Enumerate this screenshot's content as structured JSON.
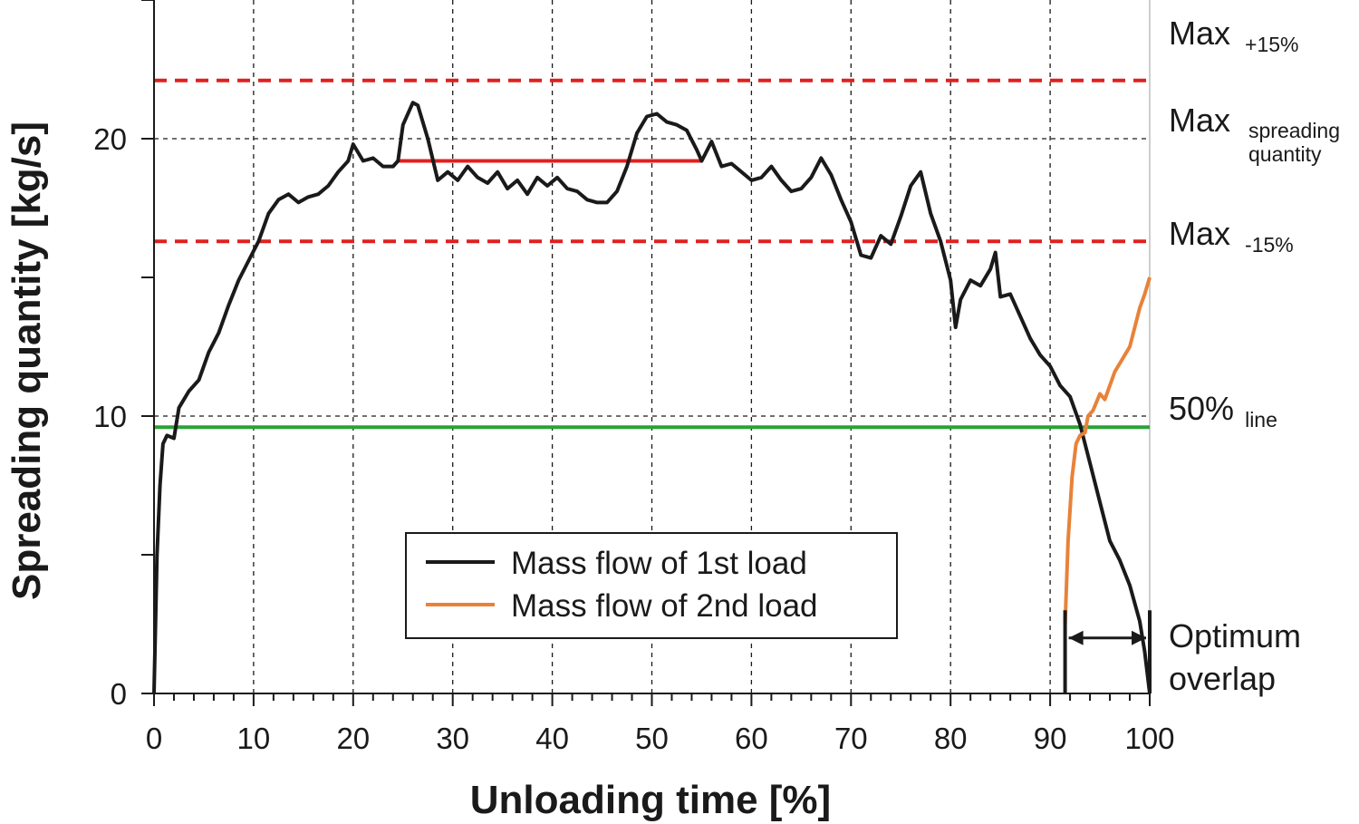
{
  "chart_data": {
    "type": "line",
    "xlabel": "Unloading time [%]",
    "ylabel": "Spreading quantity [kg/s]",
    "xlim": [
      0,
      100
    ],
    "ylim": [
      0,
      25
    ],
    "x_ticks": [
      "0",
      "10",
      "20",
      "30",
      "40",
      "50",
      "60",
      "70",
      "80",
      "90",
      "100"
    ],
    "y_ticks": [
      "0",
      "10",
      "20"
    ],
    "grid": "dashed",
    "legend_position": "bottom-center",
    "series": [
      {
        "name": "Mass flow of 1st load",
        "color": "#1a1a1a",
        "points": [
          [
            0,
            0
          ],
          [
            0.3,
            5
          ],
          [
            0.6,
            7.5
          ],
          [
            0.9,
            9.0
          ],
          [
            1.3,
            9.3
          ],
          [
            2,
            9.2
          ],
          [
            2.5,
            10.3
          ],
          [
            3.5,
            10.9
          ],
          [
            4.5,
            11.3
          ],
          [
            5.5,
            12.3
          ],
          [
            6.5,
            13.0
          ],
          [
            7.5,
            14.0
          ],
          [
            8.5,
            14.9
          ],
          [
            9.5,
            15.6
          ],
          [
            10.5,
            16.3
          ],
          [
            11.5,
            17.3
          ],
          [
            12.5,
            17.8
          ],
          [
            13.5,
            18.0
          ],
          [
            14.5,
            17.7
          ],
          [
            15.5,
            17.9
          ],
          [
            16.5,
            18.0
          ],
          [
            17.5,
            18.3
          ],
          [
            18.5,
            18.8
          ],
          [
            19.5,
            19.2
          ],
          [
            20,
            19.8
          ],
          [
            21,
            19.2
          ],
          [
            22,
            19.3
          ],
          [
            23,
            19.0
          ],
          [
            24,
            19.0
          ],
          [
            24.5,
            19.2
          ],
          [
            25,
            20.5
          ],
          [
            26,
            21.3
          ],
          [
            26.5,
            21.2
          ],
          [
            27.5,
            20.0
          ],
          [
            28.5,
            18.5
          ],
          [
            29.5,
            18.8
          ],
          [
            30.5,
            18.5
          ],
          [
            31.5,
            19.0
          ],
          [
            32.5,
            18.6
          ],
          [
            33.5,
            18.4
          ],
          [
            34.5,
            18.8
          ],
          [
            35.5,
            18.2
          ],
          [
            36.5,
            18.5
          ],
          [
            37.5,
            18.0
          ],
          [
            38.5,
            18.6
          ],
          [
            39.5,
            18.3
          ],
          [
            40.5,
            18.6
          ],
          [
            41.5,
            18.2
          ],
          [
            42.5,
            18.1
          ],
          [
            43.5,
            17.8
          ],
          [
            44.5,
            17.7
          ],
          [
            45.5,
            17.7
          ],
          [
            46.5,
            18.1
          ],
          [
            47.5,
            19.0
          ],
          [
            48.5,
            20.2
          ],
          [
            49.5,
            20.8
          ],
          [
            50.5,
            20.9
          ],
          [
            51.5,
            20.6
          ],
          [
            52.5,
            20.5
          ],
          [
            53.5,
            20.3
          ],
          [
            54.5,
            19.6
          ],
          [
            55,
            19.2
          ],
          [
            56,
            19.9
          ],
          [
            57,
            19.0
          ],
          [
            58,
            19.1
          ],
          [
            59,
            18.8
          ],
          [
            60,
            18.5
          ],
          [
            61,
            18.6
          ],
          [
            62,
            19.0
          ],
          [
            63,
            18.5
          ],
          [
            64,
            18.1
          ],
          [
            65,
            18.2
          ],
          [
            66,
            18.6
          ],
          [
            67,
            19.3
          ],
          [
            68,
            18.7
          ],
          [
            69,
            17.8
          ],
          [
            70,
            17.0
          ],
          [
            71,
            15.8
          ],
          [
            72,
            15.7
          ],
          [
            73,
            16.5
          ],
          [
            74,
            16.2
          ],
          [
            75,
            17.2
          ],
          [
            76,
            18.3
          ],
          [
            77,
            18.8
          ],
          [
            78,
            17.3
          ],
          [
            79,
            16.3
          ],
          [
            80,
            14.9
          ],
          [
            80.5,
            13.2
          ],
          [
            81,
            14.2
          ],
          [
            82,
            14.9
          ],
          [
            83,
            14.7
          ],
          [
            84,
            15.3
          ],
          [
            84.5,
            15.9
          ],
          [
            85,
            14.3
          ],
          [
            86,
            14.4
          ],
          [
            87,
            13.6
          ],
          [
            88,
            12.8
          ],
          [
            89,
            12.2
          ],
          [
            90,
            11.8
          ],
          [
            91,
            11.1
          ],
          [
            92,
            10.7
          ],
          [
            93,
            9.7
          ],
          [
            94,
            8.3
          ],
          [
            95,
            6.9
          ],
          [
            96,
            5.5
          ],
          [
            97,
            4.8
          ],
          [
            98,
            3.9
          ],
          [
            99,
            2.6
          ],
          [
            99.5,
            1.5
          ],
          [
            100,
            0
          ]
        ]
      },
      {
        "name": "Mass flow of 2nd load",
        "color": "#e8823a",
        "points": [
          [
            91.5,
            2.5
          ],
          [
            91.8,
            5.5
          ],
          [
            92.2,
            7.8
          ],
          [
            92.6,
            9.0
          ],
          [
            93.0,
            9.3
          ],
          [
            93.5,
            9.4
          ],
          [
            93.8,
            10.0
          ],
          [
            94.3,
            10.2
          ],
          [
            95,
            10.8
          ],
          [
            95.5,
            10.6
          ],
          [
            96,
            11.1
          ],
          [
            96.5,
            11.6
          ],
          [
            97,
            11.9
          ],
          [
            97.5,
            12.2
          ],
          [
            98,
            12.5
          ],
          [
            98.5,
            13.2
          ],
          [
            99,
            13.9
          ],
          [
            99.5,
            14.4
          ],
          [
            100,
            15.0
          ]
        ]
      }
    ],
    "reference_lines": [
      {
        "y": 22.1,
        "style": "dashed",
        "color": "#e02020",
        "label": "Max",
        "sub": "+15%"
      },
      {
        "y": 19.2,
        "style": "solid",
        "color": "#e02020",
        "x_range": [
          24.5,
          55
        ],
        "label": "Max",
        "sub_1": "spreading",
        "sub_2": "quantity"
      },
      {
        "y": 16.3,
        "style": "dashed",
        "color": "#e02020",
        "label": "Max",
        "sub": "-15%"
      },
      {
        "y": 9.6,
        "style": "solid",
        "color": "#29a334",
        "label": "50%",
        "sub": "line"
      }
    ],
    "annotation": {
      "line_1": "Optimum",
      "line_2": "overlap",
      "x_range": [
        91.5,
        100
      ]
    },
    "legend": [
      "Mass flow of 1st load",
      "Mass flow of 2nd load"
    ]
  }
}
